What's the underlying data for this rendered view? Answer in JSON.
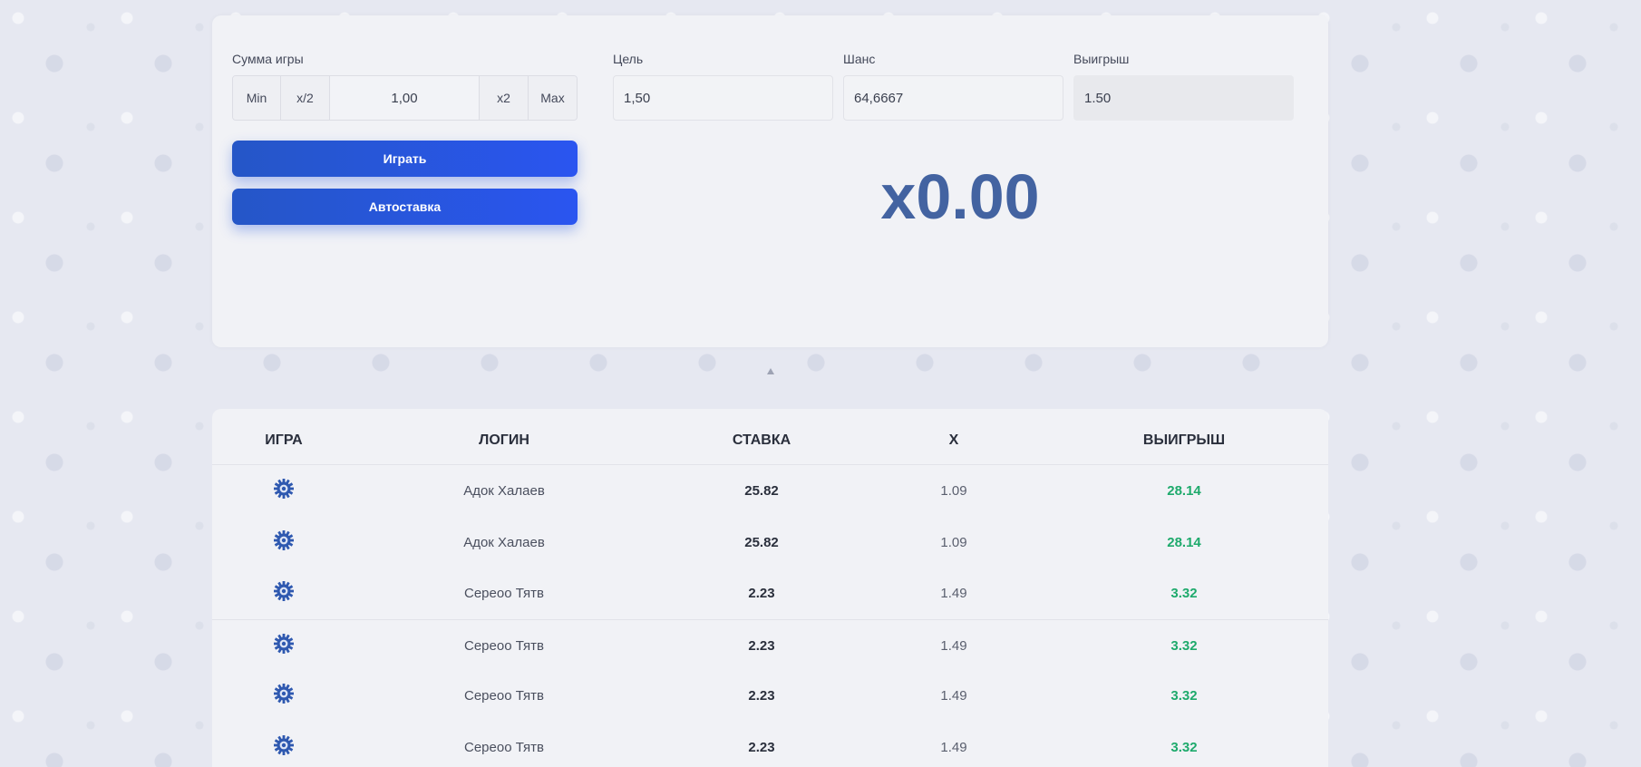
{
  "bet": {
    "label": "Сумма игры",
    "min_label": "Min",
    "half_label": "x/2",
    "value": "1,00",
    "double_label": "x2",
    "max_label": "Max"
  },
  "target": {
    "label": "Цель",
    "value": "1,50"
  },
  "chance": {
    "label": "Шанс",
    "value": "64,6667"
  },
  "payout": {
    "label": "Выигрыш",
    "value": "1.50"
  },
  "buttons": {
    "play": "Играть",
    "autobet": "Автоставка"
  },
  "multiplier": "x0.00",
  "history": {
    "columns": {
      "game": "ИГРА",
      "login": "ЛОГИН",
      "bet": "СТАВКА",
      "x": "X",
      "win": "ВЫИГРЫШ"
    },
    "game_icon": "dice-gear-icon",
    "rows": [
      {
        "login": "Адок Халаев",
        "bet": "25.82",
        "x": "1.09",
        "win": "28.14"
      },
      {
        "login": "Адок Халаев",
        "bet": "25.82",
        "x": "1.09",
        "win": "28.14"
      },
      {
        "login": "Сереоо Тятв",
        "bet": "2.23",
        "x": "1.49",
        "win": "3.32"
      },
      {
        "login": "Сереоо Тятв",
        "bet": "2.23",
        "x": "1.49",
        "win": "3.32"
      },
      {
        "login": "Сереоо Тятв",
        "bet": "2.23",
        "x": "1.49",
        "win": "3.32"
      },
      {
        "login": "Сереоо Тятв",
        "bet": "2.23",
        "x": "1.49",
        "win": "3.32"
      }
    ]
  },
  "colors": {
    "accent": "#2556c7",
    "multiplier": "#4363a1",
    "win": "#1eaa6c",
    "panel": "#f1f2f6"
  }
}
